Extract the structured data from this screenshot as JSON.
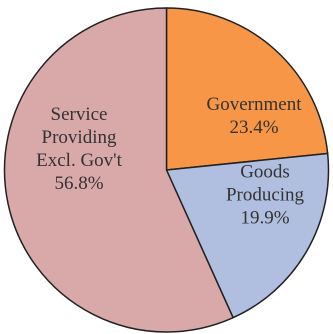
{
  "chart_data": {
    "type": "pie",
    "title": "",
    "slices": [
      {
        "name_lines": [
          "Government"
        ],
        "value_label": "23.4%",
        "value": 23.4,
        "color": "#F79646"
      },
      {
        "name_lines": [
          "Goods",
          "Producing"
        ],
        "value_label": "19.9%",
        "value": 19.9,
        "color": "#B0BFDF"
      },
      {
        "name_lines": [
          "Service",
          "Providing",
          "Excl. Gov't"
        ],
        "value_label": "56.8%",
        "value": 56.8,
        "color": "#D9A9AA"
      }
    ],
    "start": "12 o'clock, clockwise",
    "border_color": "#222222"
  }
}
